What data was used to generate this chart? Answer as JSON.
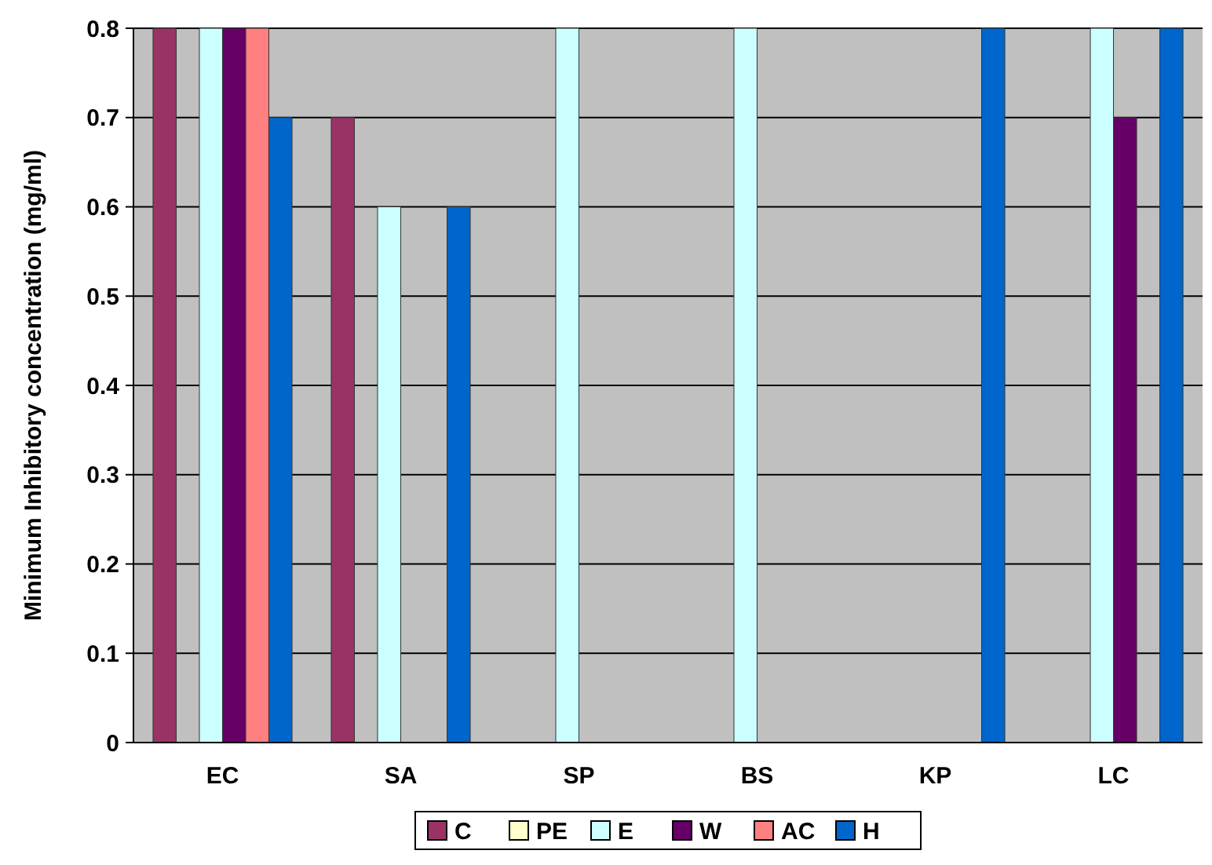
{
  "chart_data": {
    "type": "bar",
    "ylabel": "Minimum Inhibitory  concentration (mg/ml)",
    "categories": [
      "EC",
      "SA",
      "SP",
      "BS",
      "KP",
      "LC"
    ],
    "series": [
      {
        "name": "C",
        "color": "#993366",
        "values": [
          0.8,
          0.7,
          0,
          0,
          0,
          0
        ]
      },
      {
        "name": "PE",
        "color": "#ffffcc",
        "values": [
          0,
          0,
          0,
          0,
          0,
          0
        ]
      },
      {
        "name": "E",
        "color": "#ccffff",
        "values": [
          0.8,
          0.6,
          0.8,
          0.8,
          0,
          0.8
        ]
      },
      {
        "name": "W",
        "color": "#660066",
        "values": [
          0.8,
          0,
          0,
          0,
          0,
          0.7
        ]
      },
      {
        "name": "AC",
        "color": "#ff8080",
        "values": [
          0.8,
          0,
          0,
          0,
          0,
          0
        ]
      },
      {
        "name": "H",
        "color": "#0066cc",
        "values": [
          0.7,
          0.6,
          0,
          0,
          0.8,
          0.8
        ]
      }
    ],
    "ylim": [
      0,
      0.8
    ],
    "yticks": [
      0,
      0.1,
      0.2,
      0.3,
      0.4,
      0.5,
      0.6,
      0.7,
      0.8
    ],
    "grid": "y",
    "legend": "bottom"
  }
}
